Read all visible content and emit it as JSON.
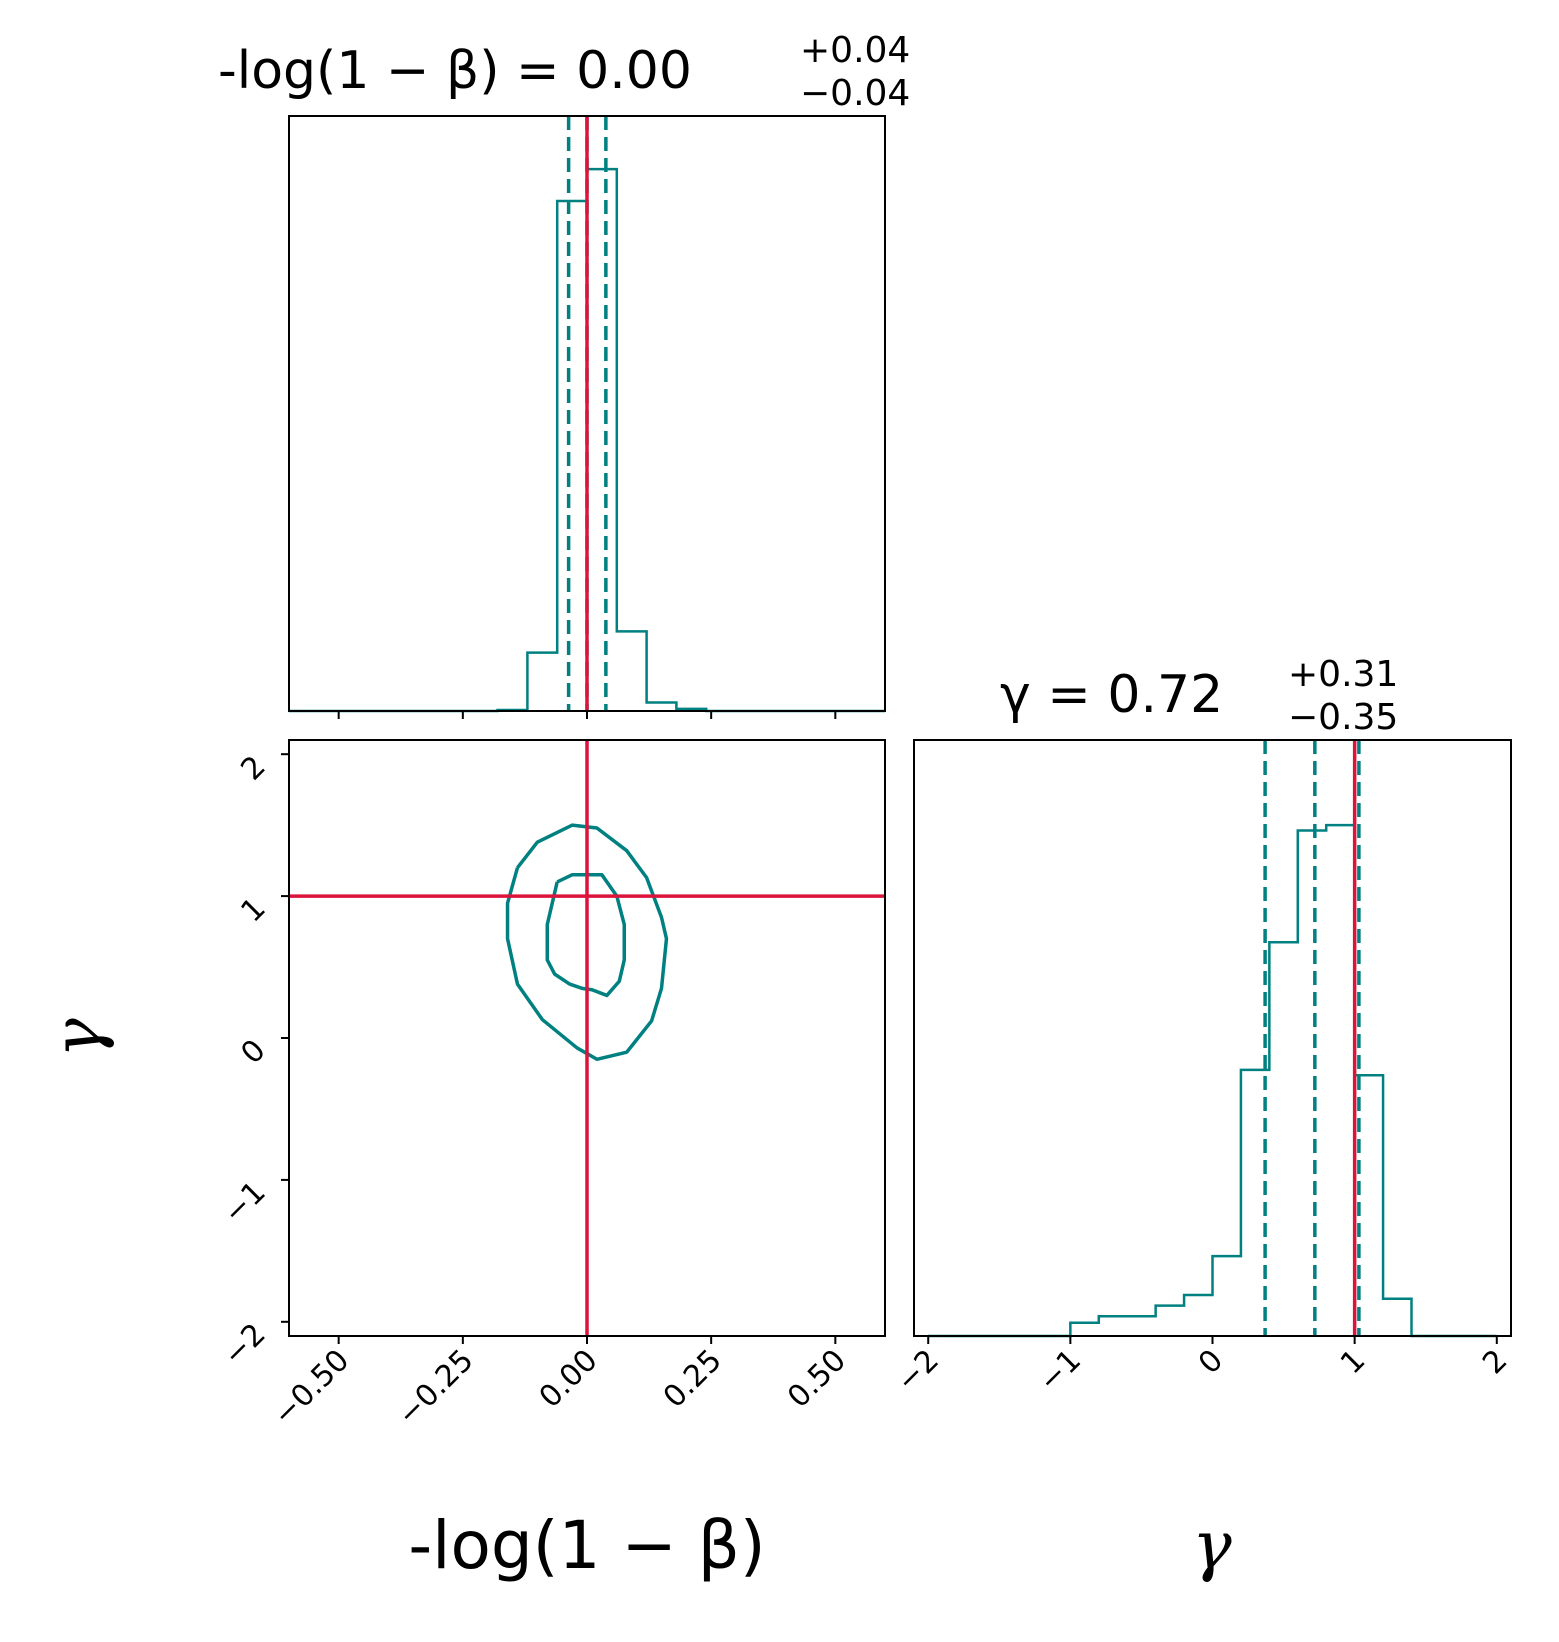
{
  "colors": {
    "histogram": "#008080",
    "truth": "#dc143c",
    "axes": "#000000"
  },
  "titles": {
    "beta": {
      "label": "-log(1 − β) = 0.00",
      "plus": "+0.04",
      "minus": "−0.04"
    },
    "gamma": {
      "label": "γ = 0.72",
      "plus": "+0.31",
      "minus": "−0.35"
    }
  },
  "axis_labels": {
    "x_beta": "-log(1 − β)",
    "x_gamma": "γ",
    "y_gamma": "γ"
  },
  "ticks": {
    "beta": [
      "−0.50",
      "−0.25",
      "0.00",
      "0.25",
      "0.50"
    ],
    "gamma": [
      "−2",
      "−1",
      "0",
      "1",
      "2"
    ]
  },
  "chart_data": [
    {
      "type": "histogram",
      "panel": "beta-marginal",
      "xlim": [
        -0.6,
        0.6
      ],
      "bin_edges": [
        -0.6,
        -0.54,
        -0.48,
        -0.42,
        -0.36,
        -0.3,
        -0.24,
        -0.18,
        -0.12,
        -0.06,
        0.0,
        0.06,
        0.12,
        0.18,
        0.24,
        0.3,
        0.36,
        0.42,
        0.48,
        0.54,
        0.6
      ],
      "counts": [
        0,
        0,
        0,
        0,
        0,
        0,
        0,
        0.002,
        0.11,
        0.96,
        1.02,
        0.15,
        0.016,
        0.004,
        0,
        0,
        0,
        0,
        0,
        0
      ],
      "ylim": [
        0,
        1.12
      ],
      "quantiles": [
        -0.037,
        0.0,
        0.038
      ],
      "truth": 0.0
    },
    {
      "type": "contour",
      "panel": "beta-gamma-2d",
      "xlim": [
        -0.6,
        0.6
      ],
      "ylim": [
        -2.1,
        2.1
      ],
      "truth": {
        "x": 0.0,
        "y": 1.0
      },
      "levels": [
        {
          "name": "",
          "x": [
            -0.06,
            -0.03,
            0.0,
            0.03,
            0.06,
            0.075,
            0.075,
            0.065,
            0.04,
            0.01,
            -0.01,
            -0.035,
            -0.065,
            -0.08,
            -0.08,
            -0.06
          ],
          "y": [
            1.1,
            1.15,
            1.15,
            1.15,
            1.0,
            0.8,
            0.55,
            0.4,
            0.3,
            0.34,
            0.35,
            0.38,
            0.45,
            0.55,
            0.8,
            1.1
          ]
        },
        {
          "name": "",
          "x": [
            -0.14,
            -0.1,
            -0.03,
            0.02,
            0.08,
            0.12,
            0.15,
            0.16,
            0.15,
            0.13,
            0.08,
            0.02,
            -0.02,
            -0.09,
            -0.14,
            -0.16,
            -0.16,
            -0.14
          ],
          "y": [
            1.2,
            1.38,
            1.5,
            1.48,
            1.32,
            1.13,
            0.85,
            0.7,
            0.35,
            0.12,
            -0.1,
            -0.15,
            -0.07,
            0.13,
            0.38,
            0.7,
            0.95,
            1.2
          ]
        }
      ]
    },
    {
      "type": "histogram",
      "panel": "gamma-marginal",
      "xlim": [
        -2.1,
        2.1
      ],
      "bin_edges": [
        -2.0,
        -1.8,
        -1.6,
        -1.4,
        -1.2,
        -1.0,
        -0.8,
        -0.6,
        -0.4,
        -0.2,
        0.0,
        0.2,
        0.4,
        0.6,
        0.8,
        1.0,
        1.2,
        1.4,
        1.6,
        1.8,
        2.0
      ],
      "counts": [
        0,
        0,
        0,
        0,
        0,
        0.025,
        0.037,
        0.037,
        0.057,
        0.077,
        0.15,
        0.5,
        0.74,
        0.95,
        0.96,
        0.49,
        0.07,
        0,
        0,
        0
      ],
      "ylim": [
        0,
        1.12
      ],
      "quantiles": [
        0.37,
        0.72,
        1.03
      ],
      "truth": 1.0
    }
  ]
}
